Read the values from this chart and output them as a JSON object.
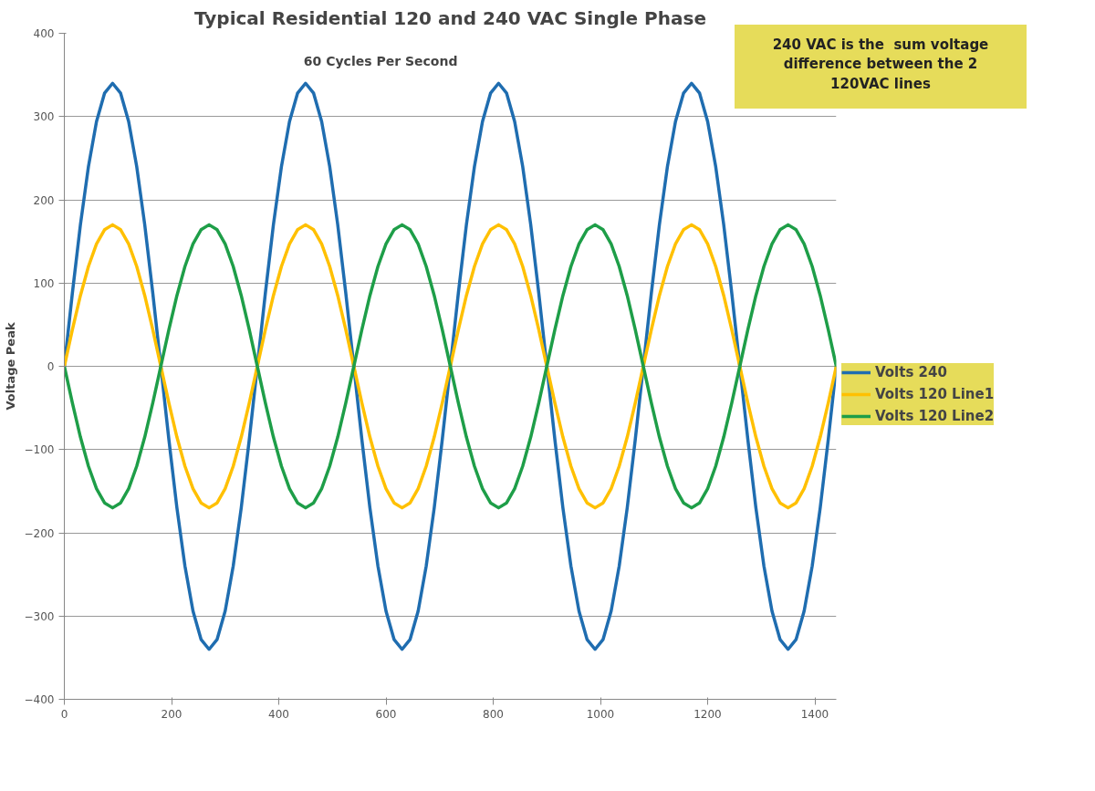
{
  "chart_data": {
    "type": "line",
    "title": "Typical Residential 120 and 240 VAC Single Phase",
    "ylabel": "Voltage Peak",
    "annotations": [
      "60 Cycles Per Second",
      "240 VAC is the  sum voltage\ndifference between the 2\n120VAC lines"
    ],
    "x": [
      0,
      15,
      30,
      45,
      60,
      75,
      90,
      105,
      120,
      135,
      150,
      165,
      180,
      195,
      210,
      225,
      240,
      255,
      270,
      285,
      300,
      315,
      330,
      345,
      360,
      375,
      390,
      405,
      420,
      435,
      450,
      465,
      480,
      495,
      510,
      525,
      540,
      555,
      570,
      585,
      600,
      615,
      630,
      645,
      660,
      675,
      690,
      705,
      720,
      735,
      750,
      765,
      780,
      795,
      810,
      825,
      840,
      855,
      870,
      885,
      900,
      915,
      930,
      945,
      960,
      975,
      990,
      1005,
      1020,
      1035,
      1050,
      1065,
      1080,
      1095,
      1110,
      1125,
      1140,
      1155,
      1170,
      1185,
      1200,
      1215,
      1230,
      1245,
      1260,
      1275,
      1290,
      1305,
      1320,
      1335,
      1350,
      1365,
      1380,
      1395,
      1410,
      1425,
      1440
    ],
    "series": [
      {
        "name": "Volts 240",
        "color": "#1f6db0",
        "values": [
          0,
          88,
          170,
          240,
          294,
          328,
          340,
          328,
          294,
          240,
          170,
          88,
          0,
          -88,
          -170,
          -240,
          -294,
          -328,
          -340,
          -328,
          -294,
          -240,
          -170,
          -88,
          0,
          88,
          170,
          240,
          294,
          328,
          340,
          328,
          294,
          240,
          170,
          88,
          0,
          -88,
          -170,
          -240,
          -294,
          -328,
          -340,
          -328,
          -294,
          -240,
          -170,
          -88,
          0,
          88,
          170,
          240,
          294,
          328,
          340,
          328,
          294,
          240,
          170,
          88,
          0,
          -88,
          -170,
          -240,
          -294,
          -328,
          -340,
          -328,
          -294,
          -240,
          -170,
          -88,
          0,
          88,
          170,
          240,
          294,
          328,
          340,
          328,
          294,
          240,
          170,
          88,
          0,
          -88,
          -170,
          -240,
          -294,
          -328,
          -340,
          -328,
          -294,
          -240,
          -170,
          -88,
          0
        ]
      },
      {
        "name": "Volts 120 Line1",
        "color": "#ffc000",
        "values": [
          0,
          44,
          85,
          120,
          147,
          164,
          170,
          164,
          147,
          120,
          85,
          44,
          0,
          -44,
          -85,
          -120,
          -147,
          -164,
          -170,
          -164,
          -147,
          -120,
          -85,
          -44,
          0,
          44,
          85,
          120,
          147,
          164,
          170,
          164,
          147,
          120,
          85,
          44,
          0,
          -44,
          -85,
          -120,
          -147,
          -164,
          -170,
          -164,
          -147,
          -120,
          -85,
          -44,
          0,
          44,
          85,
          120,
          147,
          164,
          170,
          164,
          147,
          120,
          85,
          44,
          0,
          -44,
          -85,
          -120,
          -147,
          -164,
          -170,
          -164,
          -147,
          -120,
          -85,
          -44,
          0,
          44,
          85,
          120,
          147,
          164,
          170,
          164,
          147,
          120,
          85,
          44,
          0,
          -44,
          -85,
          -120,
          -147,
          -164,
          -170,
          -164,
          -147,
          -120,
          -85,
          -44,
          0
        ]
      },
      {
        "name": "Volts 120 Line2",
        "color": "#1e9e48",
        "values": [
          0,
          -44,
          -85,
          -120,
          -147,
          -164,
          -170,
          -164,
          -147,
          -120,
          -85,
          -44,
          0,
          44,
          85,
          120,
          147,
          164,
          170,
          164,
          147,
          120,
          85,
          44,
          0,
          -44,
          -85,
          -120,
          -147,
          -164,
          -170,
          -164,
          -147,
          -120,
          -85,
          -44,
          0,
          44,
          85,
          120,
          147,
          164,
          170,
          164,
          147,
          120,
          85,
          44,
          0,
          -44,
          -85,
          -120,
          -147,
          -164,
          -170,
          -164,
          -147,
          -120,
          -85,
          -44,
          0,
          44,
          85,
          120,
          147,
          164,
          170,
          164,
          147,
          120,
          85,
          44,
          0,
          -44,
          -85,
          -120,
          -147,
          -164,
          -170,
          -164,
          -147,
          -120,
          -85,
          -44,
          0,
          44,
          85,
          120,
          147,
          164,
          170,
          164,
          147,
          120,
          85,
          44,
          0
        ]
      }
    ],
    "xlim": [
      0,
      1440
    ],
    "xticks": [
      0,
      200,
      400,
      600,
      800,
      1000,
      1200,
      1400
    ],
    "ylim": [
      -400,
      400
    ],
    "yticks": [
      -400,
      -300,
      -200,
      -100,
      0,
      100,
      200,
      300,
      400
    ],
    "grid": "y",
    "legend": "right",
    "line_style": "solid"
  }
}
